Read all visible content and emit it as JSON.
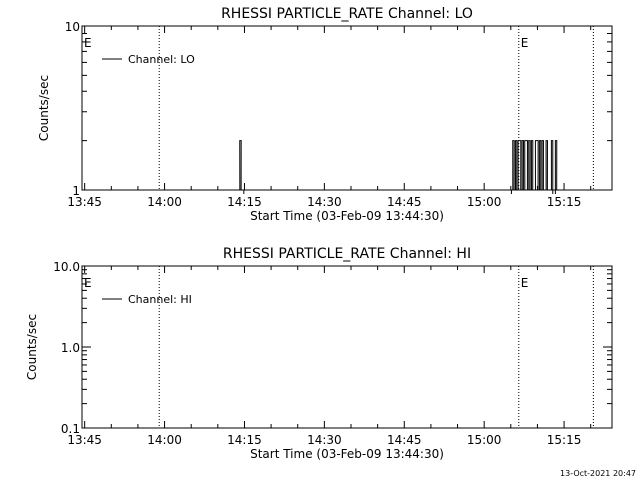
{
  "footer": {
    "timestamp": "13-Oct-2021 20:47"
  },
  "chart_data": [
    {
      "type": "line",
      "title": "RHESSI PARTICLE_RATE Channel: LO",
      "xlabel": "Start Time (03-Feb-09 13:44:30)",
      "ylabel": "Counts/sec",
      "y_scale": "log",
      "ylim": [
        1,
        10
      ],
      "y_ticks": [
        {
          "value": 1,
          "label": "1"
        },
        {
          "value": 10,
          "label": "10"
        }
      ],
      "xlim": [
        "13:44:30",
        "15:24:00"
      ],
      "x_ticks": [
        "13:45",
        "14:00",
        "14:15",
        "14:30",
        "14:45",
        "15:00",
        "15:15"
      ],
      "grid": false,
      "legend": {
        "placement": "top-left",
        "entries": [
          "Channel: LO"
        ]
      },
      "markers": [
        {
          "time": "13:44:30",
          "label": "E"
        },
        {
          "time": "13:59:00",
          "label": ""
        },
        {
          "time": "15:06:30",
          "label": "E"
        },
        {
          "time": "15:20:30",
          "label": ""
        }
      ],
      "series": [
        {
          "name": "Channel: LO",
          "x": [
            "14:14:00",
            "14:14:15",
            "14:14:30",
            "14:14:45",
            "15:05:15",
            "15:05:30",
            "15:05:45",
            "15:06:00",
            "15:06:15",
            "15:06:30",
            "15:06:45",
            "15:07:00",
            "15:07:15",
            "15:07:30",
            "15:07:45",
            "15:08:00",
            "15:08:15",
            "15:08:30",
            "15:08:45",
            "15:09:00",
            "15:09:15",
            "15:09:30",
            "15:09:45",
            "15:10:00",
            "15:10:15",
            "15:10:30",
            "15:10:45",
            "15:11:00",
            "15:11:15",
            "15:11:30",
            "15:11:45",
            "15:12:00",
            "15:12:15",
            "15:12:30",
            "15:12:45",
            "15:13:30",
            "15:13:45",
            "15:14:00",
            "15:14:15",
            "15:14:30"
          ],
          "y": [
            1,
            2,
            1,
            1,
            1,
            2,
            1,
            2,
            1,
            2,
            2,
            1,
            2,
            1,
            2,
            2,
            1,
            2,
            1,
            2,
            1,
            1,
            2,
            2,
            1,
            2,
            1,
            2,
            1,
            1,
            2,
            1,
            1,
            1,
            2,
            2,
            1,
            1,
            1,
            1
          ]
        }
      ]
    },
    {
      "type": "line",
      "title": "RHESSI PARTICLE_RATE Channel: HI",
      "xlabel": "Start Time (03-Feb-09 13:44:30)",
      "ylabel": "Counts/sec",
      "y_scale": "log",
      "ylim": [
        0.1,
        10
      ],
      "y_ticks": [
        {
          "value": 0.1,
          "label": "0.1"
        },
        {
          "value": 1,
          "label": "1.0"
        },
        {
          "value": 10,
          "label": "10.0"
        }
      ],
      "xlim": [
        "13:44:30",
        "15:24:00"
      ],
      "x_ticks": [
        "13:45",
        "14:00",
        "14:15",
        "14:30",
        "14:45",
        "15:00",
        "15:15"
      ],
      "grid": false,
      "legend": {
        "placement": "top-left",
        "entries": [
          "Channel: HI"
        ]
      },
      "markers": [
        {
          "time": "13:44:30",
          "label": "E"
        },
        {
          "time": "13:59:00",
          "label": ""
        },
        {
          "time": "15:06:30",
          "label": "E"
        },
        {
          "time": "15:20:30",
          "label": ""
        }
      ],
      "series": [
        {
          "name": "Channel: HI",
          "x": [],
          "y": []
        }
      ]
    }
  ]
}
